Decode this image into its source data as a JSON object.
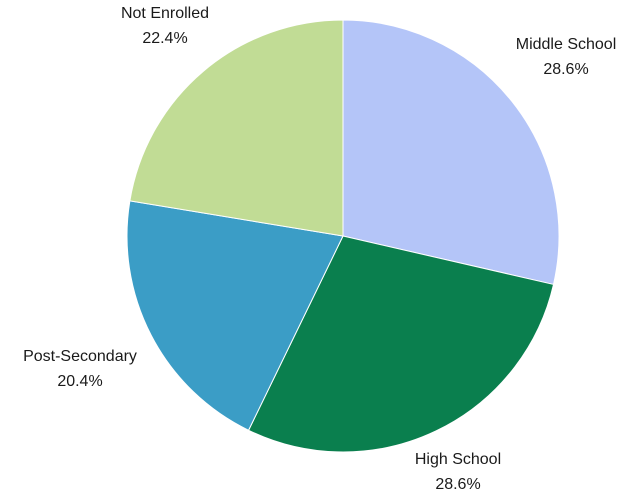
{
  "chart_data": {
    "type": "pie",
    "title": "",
    "categories": [
      "Middle School",
      "High School",
      "Post-Secondary",
      "Not Enrolled"
    ],
    "values": [
      28.6,
      28.6,
      20.4,
      22.4
    ],
    "value_labels": [
      "28.6%",
      "28.6%",
      "20.4%",
      "22.4%"
    ],
    "colors": [
      "#b4c5f8",
      "#0a7f4e",
      "#3b9dc6",
      "#c1dc95"
    ],
    "start_angle": "12 o'clock",
    "direction": "clockwise",
    "legend": "none"
  }
}
